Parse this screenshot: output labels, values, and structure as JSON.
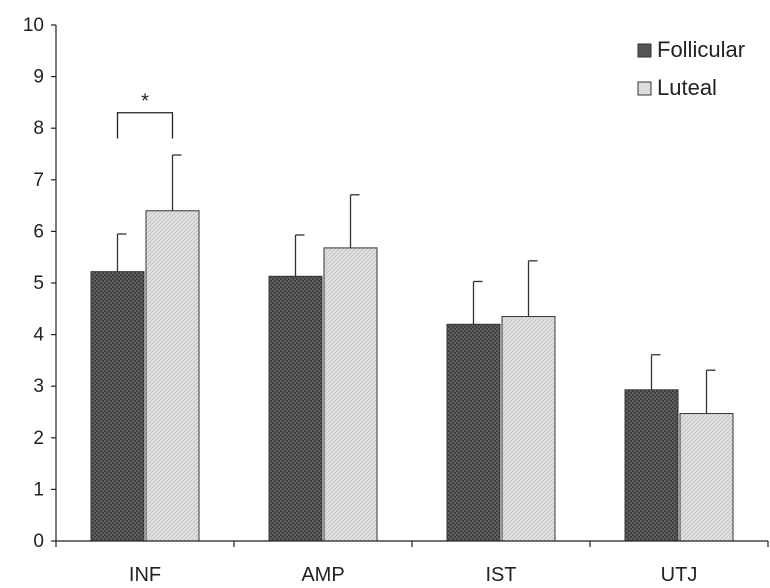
{
  "chart_data": {
    "type": "bar",
    "title": "",
    "xlabel": "",
    "ylabel": "",
    "ylim": [
      0,
      10
    ],
    "yticks": [
      0,
      1,
      2,
      3,
      4,
      5,
      6,
      7,
      8,
      9,
      10
    ],
    "categories": [
      "INF",
      "AMP",
      "IST",
      "UTJ"
    ],
    "series": [
      {
        "name": "Follicular",
        "values": [
          5.22,
          5.13,
          4.2,
          2.93
        ],
        "errors": [
          0.73,
          0.8,
          0.83,
          0.68
        ],
        "color": "#555555"
      },
      {
        "name": "Luteal",
        "values": [
          6.4,
          5.68,
          4.35,
          2.47
        ],
        "errors": [
          1.08,
          1.03,
          1.08,
          0.84
        ],
        "color": "#dddddd"
      }
    ],
    "legend": {
      "position": "top-right"
    },
    "grid": false,
    "annotations": [
      {
        "text": "*",
        "category": "INF"
      }
    ]
  }
}
